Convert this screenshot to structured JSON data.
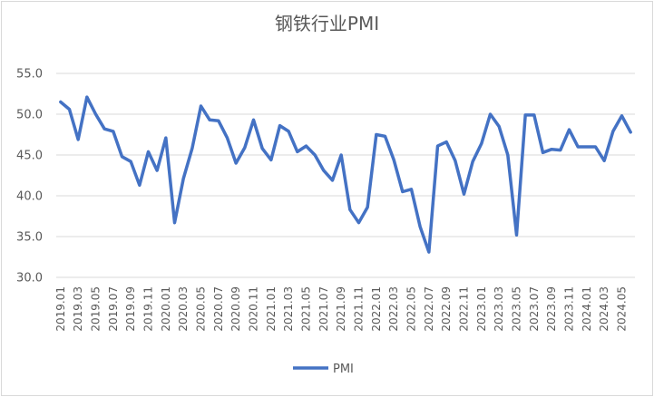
{
  "chart_data": {
    "type": "line",
    "title": "钢铁行业PMI",
    "xlabel": "",
    "ylabel": "",
    "ylim": [
      30,
      55
    ],
    "yticks": [
      "30.0",
      "35.0",
      "40.0",
      "45.0",
      "50.0",
      "55.0"
    ],
    "grid": true,
    "legend_position": "bottom",
    "line_color": "#4472c4",
    "x": [
      "2019.01",
      "2019.02",
      "2019.03",
      "2019.04",
      "2019.05",
      "2019.06",
      "2019.07",
      "2019.08",
      "2019.09",
      "2019.10",
      "2019.11",
      "2019.12",
      "2020.01",
      "2020.02",
      "2020.03",
      "2020.04",
      "2020.05",
      "2020.06",
      "2020.07",
      "2020.08",
      "2020.09",
      "2020.10",
      "2020.11",
      "2020.12",
      "2021.01",
      "2021.02",
      "2021.03",
      "2021.04",
      "2021.05",
      "2021.06",
      "2021.07",
      "2021.08",
      "2021.09",
      "2021.10",
      "2021.11",
      "2021.12",
      "2022.01",
      "2022.02",
      "2022.03",
      "2022.04",
      "2022.05",
      "2022.06",
      "2022.07",
      "2022.08",
      "2022.09",
      "2022.10",
      "2022.11",
      "2022.12",
      "2023.01",
      "2023.02",
      "2023.03",
      "2023.04",
      "2023.05",
      "2023.06",
      "2023.07",
      "2023.08",
      "2023.09",
      "2023.10",
      "2023.11",
      "2023.12",
      "2024.01",
      "2024.02",
      "2024.03",
      "2024.04",
      "2024.05",
      "2024.06"
    ],
    "xtick_labels": [
      "2019.01",
      "2019.03",
      "2019.05",
      "2019.07",
      "2019.09",
      "2019.11",
      "2020.01",
      "2020.03",
      "2020.05",
      "2020.07",
      "2020.09",
      "2020.11",
      "2021.01",
      "2021.03",
      "2021.05",
      "2021.07",
      "2021.09",
      "2021.11",
      "2022.01",
      "2022.03",
      "2022.05",
      "2022.07",
      "2022.09",
      "2022.11",
      "2023.01",
      "2023.03",
      "2023.05",
      "2023.07",
      "2023.09",
      "2023.11",
      "2024.01",
      "2024.03",
      "2024.05"
    ],
    "series": [
      {
        "name": "PMI",
        "values": [
          51.5,
          50.6,
          46.9,
          52.1,
          50.0,
          48.2,
          47.9,
          44.8,
          44.2,
          41.3,
          45.4,
          43.1,
          47.1,
          36.7,
          42.1,
          45.8,
          51.0,
          49.3,
          49.2,
          47.1,
          44.0,
          45.9,
          49.3,
          45.8,
          44.4,
          48.6,
          47.9,
          45.4,
          46.1,
          45.0,
          43.1,
          41.9,
          45.0,
          38.3,
          36.7,
          38.6,
          47.5,
          47.3,
          44.4,
          40.5,
          40.8,
          36.2,
          33.1,
          46.1,
          46.6,
          44.3,
          40.2,
          44.2,
          46.4,
          50.0,
          48.5,
          45.0,
          35.2,
          49.9,
          49.9,
          45.3,
          45.7,
          45.6,
          48.1,
          46.0,
          46.0,
          46.0,
          44.3,
          47.9,
          49.8,
          47.8
        ]
      }
    ]
  }
}
